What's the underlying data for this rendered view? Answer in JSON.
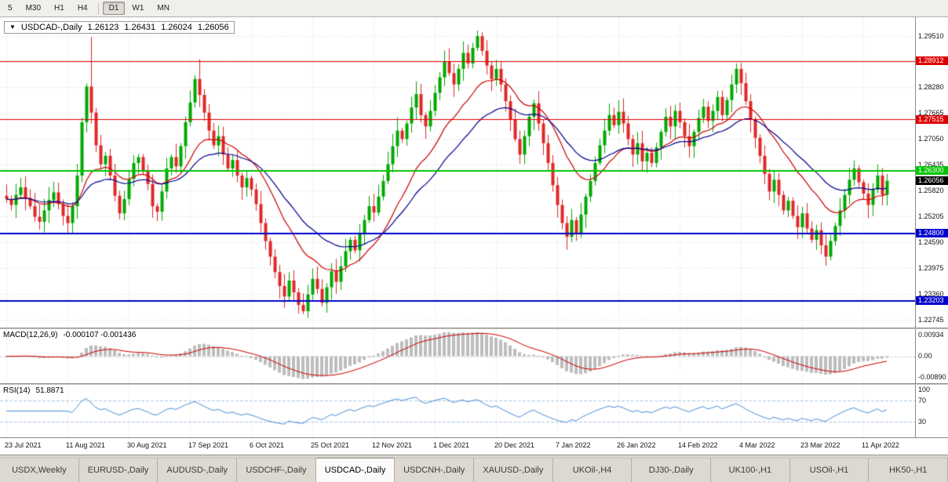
{
  "toolbar": {
    "buttons": [
      "5",
      "M30",
      "H1",
      "H4",
      "D1",
      "W1",
      "MN"
    ],
    "active": "D1",
    "divider_before": "D1"
  },
  "chart_header": {
    "dropdown_icon": "▼",
    "symbol": "USDCAD-,Daily",
    "open": "1.26123",
    "high": "1.26431",
    "low": "1.26024",
    "close": "1.26056"
  },
  "axis": {
    "main_ticks": [
      "1.29510",
      "1.28280",
      "1.27665",
      "1.27050",
      "1.26435",
      "1.25820",
      "1.25205",
      "1.24590",
      "1.23975",
      "1.23360",
      "1.22745"
    ],
    "macd_top": "0.00934",
    "macd_zero": "0.00",
    "macd_bottom": "-0.00890",
    "rsi_top": "100",
    "rsi_upper": "70",
    "rsi_lower": "30"
  },
  "panels": {
    "macd_title": "MACD(12,26,9)",
    "macd_values": "-0.000107 -0.001436",
    "rsi_title": "RSI(14)",
    "rsi_value": "51.8871"
  },
  "tabs": {
    "items": [
      "USDX,Weekly",
      "EURUSD-,Daily",
      "AUDUSD-,Daily",
      "USDCHF-,Daily",
      "USDCAD-,Daily",
      "USDCNH-,Daily",
      "XAUUSD-,Daily",
      "UKOil-,H4",
      "DJ30-,Daily",
      "UK100-,H1",
      "USOil-,H1",
      "HK50-,H1"
    ],
    "active_index": 4
  },
  "chart_data": {
    "type": "candlestick+indicators",
    "symbol": "USDCAD",
    "timeframe": "Daily",
    "ylim": [
      1.2256,
      1.2995
    ],
    "grid": {
      "base": 1.22745,
      "step": 0.00615
    },
    "x_ticks": [
      {
        "label": "23 Jul 2021",
        "index": 0
      },
      {
        "label": "11 Aug 2021",
        "index": 13
      },
      {
        "label": "30 Aug 2021",
        "index": 26
      },
      {
        "label": "17 Sep 2021",
        "index": 39
      },
      {
        "label": "6 Oct 2021",
        "index": 52
      },
      {
        "label": "25 Oct 2021",
        "index": 65
      },
      {
        "label": "12 Nov 2021",
        "index": 78
      },
      {
        "label": "1 Dec 2021",
        "index": 91
      },
      {
        "label": "20 Dec 2021",
        "index": 104
      },
      {
        "label": "7 Jan 2022",
        "index": 117
      },
      {
        "label": "26 Jan 2022",
        "index": 130
      },
      {
        "label": "14 Feb 2022",
        "index": 143
      },
      {
        "label": "4 Mar 2022",
        "index": 156
      },
      {
        "label": "23 Mar 2022",
        "index": 169
      },
      {
        "label": "11 Apr 2022",
        "index": 182
      }
    ],
    "closes": [
      1.2562,
      1.2548,
      1.2572,
      1.259,
      1.2565,
      1.2545,
      1.252,
      1.2508,
      1.2535,
      1.256,
      1.2578,
      1.255,
      1.2522,
      1.2505,
      1.2545,
      1.2618,
      1.2745,
      1.283,
      1.2768,
      1.269,
      1.2645,
      1.2665,
      1.2618,
      1.257,
      1.2528,
      1.2562,
      1.261,
      1.2648,
      1.2662,
      1.263,
      1.2598,
      1.2545,
      1.2532,
      1.258,
      1.2635,
      1.2662,
      1.264,
      1.2688,
      1.2745,
      1.2792,
      1.2848,
      1.281,
      1.2768,
      1.2725,
      1.269,
      1.2712,
      1.2668,
      1.2635,
      1.2655,
      1.2618,
      1.259,
      1.2612,
      1.2585,
      1.255,
      1.2505,
      1.2462,
      1.2425,
      1.2388,
      1.2355,
      1.233,
      1.2368,
      1.234,
      1.231,
      1.2295,
      1.2335,
      1.2372,
      1.2348,
      1.2315,
      1.2352,
      1.239,
      1.2365,
      1.2402,
      1.2438,
      1.2465,
      1.244,
      1.2478,
      1.2512,
      1.2545,
      1.253,
      1.2568,
      1.2605,
      1.2645,
      1.2688,
      1.2725,
      1.2705,
      1.2742,
      1.278,
      1.2812,
      1.2762,
      1.2735,
      1.2772,
      1.2815,
      1.2852,
      1.289,
      1.2862,
      1.2835,
      1.2872,
      1.291,
      1.2885,
      1.2922,
      1.295,
      1.2915,
      1.288,
      1.2848,
      1.2872,
      1.2835,
      1.2795,
      1.2752,
      1.2705,
      1.2668,
      1.2712,
      1.2758,
      1.279,
      1.2742,
      1.2695,
      1.2648,
      1.2595,
      1.2548,
      1.2505,
      1.2472,
      1.2512,
      1.2478,
      1.2525,
      1.2568,
      1.2605,
      1.2648,
      1.269,
      1.2725,
      1.2762,
      1.2738,
      1.277,
      1.2742,
      1.2705,
      1.2668,
      1.2695,
      1.2652,
      1.2672,
      1.2648,
      1.2685,
      1.2722,
      1.2758,
      1.2735,
      1.2772,
      1.2745,
      1.2712,
      1.2688,
      1.2722,
      1.2755,
      1.2782,
      1.2748,
      1.2772,
      1.2805,
      1.2762,
      1.2798,
      1.2835,
      1.2872,
      1.2838,
      1.2795,
      1.2752,
      1.2708,
      1.2665,
      1.2622,
      1.258,
      1.2608,
      1.2572,
      1.2535,
      1.2558,
      1.2522,
      1.2495,
      1.2528,
      1.2492,
      1.2465,
      1.2488,
      1.2452,
      1.2425,
      1.2462,
      1.2498,
      1.2535,
      1.2572,
      1.2608,
      1.2635,
      1.2602,
      1.2575,
      1.2548,
      1.2585,
      1.2618,
      1.2572,
      1.26056
    ],
    "wick_overrides": {
      "18": {
        "h": 1.2948
      },
      "41": {
        "h": 1.2895
      },
      "63": {
        "l": 1.2288
      },
      "100": {
        "h": 1.2963
      },
      "174": {
        "l": 1.2403
      }
    },
    "levels": [
      {
        "price": 1.28912,
        "label": "1.28912",
        "color": "#dd0000",
        "line_width": 1
      },
      {
        "price": 1.27515,
        "label": "1.27515",
        "color": "#dd0000",
        "line_width": 1
      },
      {
        "price": 1.263,
        "label": "1.26300",
        "color": "#00c400",
        "line_width": 2
      },
      {
        "price": 1.248,
        "label": "1.24800",
        "color": "#0000cc",
        "line_width": 2
      },
      {
        "price": 1.23203,
        "label": "1.23203",
        "color": "#0000cc",
        "line_width": 2
      }
    ],
    "current_price": {
      "price": 1.26056,
      "label": "1.26056",
      "color": "#000000"
    },
    "indicators": {
      "ma_fast": {
        "period": 16,
        "color": "#cc0000"
      },
      "ma_slow": {
        "period": 30,
        "color": "#000090"
      },
      "macd": {
        "fast": 12,
        "slow": 26,
        "signal": 9,
        "current": "-0.000107",
        "signal_current": "-0.001436",
        "hist_color": "#bdbdbd",
        "signal_color": "#cc0000"
      },
      "rsi": {
        "period": 14,
        "current": "51.8871",
        "levels": [
          70,
          30
        ],
        "line_color": "#4a90d9",
        "level_color": "#aec8e2"
      }
    },
    "style": {
      "up": "#00a800",
      "down": "#e02828",
      "grid": "#dcdcdc",
      "vgrid": "#e2e2e2"
    }
  }
}
